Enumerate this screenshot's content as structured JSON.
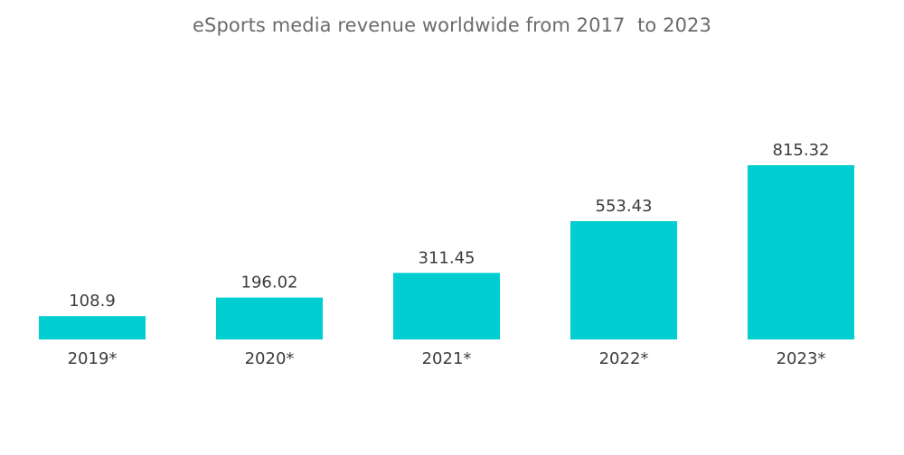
{
  "chart_data": {
    "type": "bar",
    "title": "eSports media revenue worldwide from 2017  to 2023",
    "xlabel": "",
    "ylabel": "",
    "categories": [
      "2019*",
      "2020*",
      "2021*",
      "2022*",
      "2023*"
    ],
    "values": [
      108.9,
      196.02,
      311.45,
      553.43,
      815.32
    ],
    "value_labels": [
      "108.9",
      "196.02",
      "311.45",
      "553.43",
      "815.32"
    ],
    "ylim": [
      0,
      815.32
    ],
    "grid": false,
    "legend": "none",
    "bar_color": "#00CED1"
  }
}
